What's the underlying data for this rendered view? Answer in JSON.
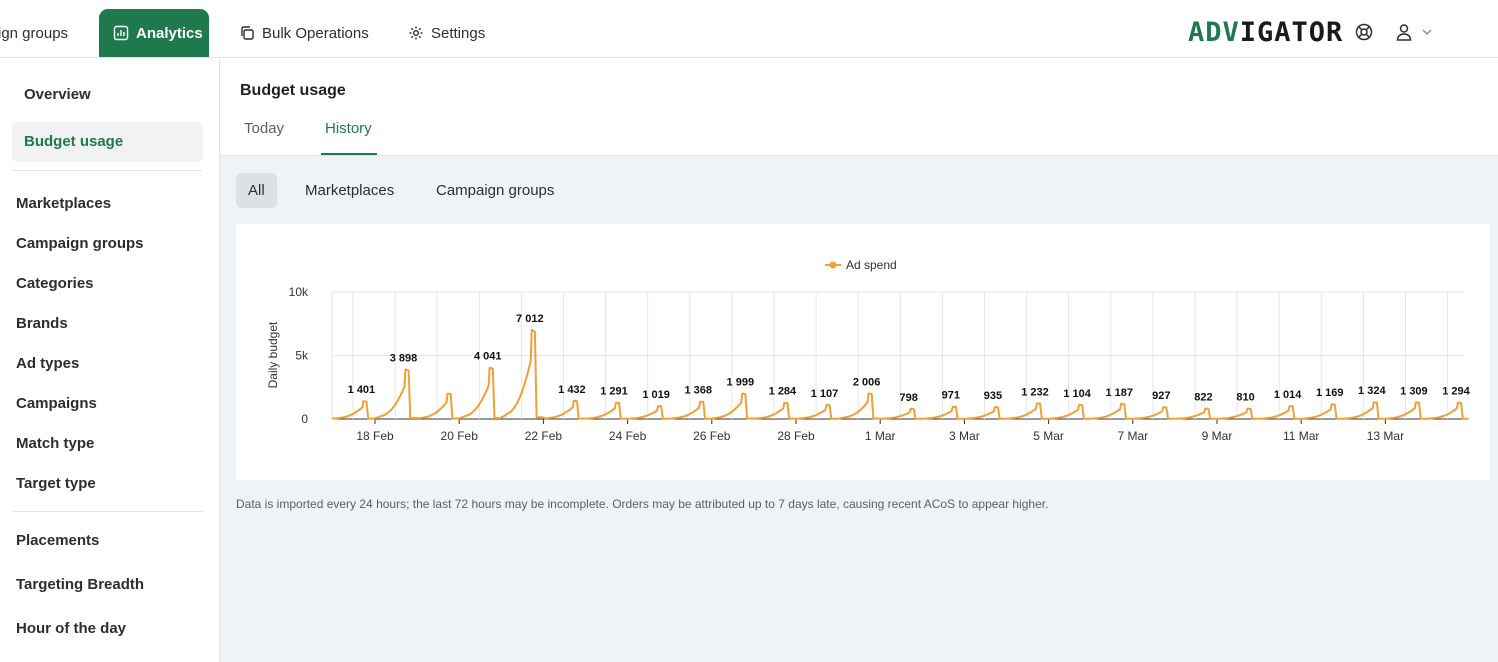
{
  "nav": {
    "campaign_groups": "ign groups",
    "analytics": "Analytics",
    "bulk_operations": "Bulk Operations",
    "settings": "Settings",
    "logo_green": "ADV",
    "logo_dark": "IGATOR"
  },
  "sidebar": {
    "overview": "Overview",
    "budget_usage": "Budget usage",
    "items": [
      "Marketplaces",
      "Campaign groups",
      "Categories",
      "Brands",
      "Ad types",
      "Campaigns",
      "Match type",
      "Target type"
    ],
    "items2": [
      "Placements",
      "Targeting Breadth",
      "Hour of the day"
    ]
  },
  "header": {
    "title": "Budget usage",
    "tabs": [
      "Today",
      "History"
    ]
  },
  "segments": [
    "All",
    "Marketplaces",
    "Campaign groups"
  ],
  "footnote": "Data is imported every 24 hours; the last 72 hours may be incomplete. Orders may be attributed up to 7 days late, causing recent ACoS to appear higher.",
  "colors": {
    "accent": "#1e7a4c",
    "series": "#f0a035"
  },
  "icons": {
    "analytics": "bar-chart-icon",
    "bulk": "copy-icon",
    "settings": "gear-icon",
    "help": "lifebuoy-icon",
    "user": "user-icon",
    "chevron": "chevron-down-icon"
  },
  "chart_data": {
    "type": "line",
    "legend": [
      "Ad spend"
    ],
    "legend_position": "top-center",
    "ylabel": "Daily budget",
    "ylim": [
      0,
      10000
    ],
    "yticks": [
      "0",
      "5k",
      "10k"
    ],
    "xticks": [
      "18 Feb",
      "20 Feb",
      "22 Feb",
      "24 Feb",
      "26 Feb",
      "28 Feb",
      "1 Mar",
      "3 Mar",
      "5 Mar",
      "7 Mar",
      "9 Mar",
      "11 Mar",
      "13 Mar"
    ],
    "grid": "vertical-and-horizontal",
    "series": [
      {
        "name": "Ad spend",
        "days": [
          "17 Feb",
          "18 Feb",
          "19 Feb",
          "20 Feb",
          "21 Feb",
          "22 Feb",
          "23 Feb",
          "24 Feb",
          "25 Feb",
          "26 Feb",
          "27 Feb",
          "28 Feb",
          "29 Feb",
          "1 Mar",
          "2 Mar",
          "3 Mar",
          "4 Mar",
          "5 Mar",
          "6 Mar",
          "7 Mar",
          "8 Mar",
          "9 Mar",
          "10 Mar",
          "11 Mar",
          "12 Mar",
          "13 Mar",
          "14 Mar"
        ],
        "daily_max": [
          1401,
          3898,
          2000,
          4041,
          7012,
          1432,
          1291,
          1019,
          1368,
          1999,
          1284,
          1107,
          2006,
          798,
          971,
          935,
          1232,
          1104,
          1187,
          927,
          822,
          810,
          1014,
          1169,
          1324,
          1309,
          1294
        ],
        "labels": [
          "1 401",
          "3 898",
          "",
          "4 041",
          "7 012",
          "1 432",
          "1 291",
          "1 019",
          "1 368",
          "1 999",
          "1 284",
          "1 107",
          "2 006",
          "798",
          "971",
          "935",
          "1 232",
          "1 104",
          "1 187",
          "927",
          "822",
          "810",
          "1 014",
          "1 169",
          "1 324",
          "1 309",
          "1 294"
        ]
      }
    ]
  }
}
